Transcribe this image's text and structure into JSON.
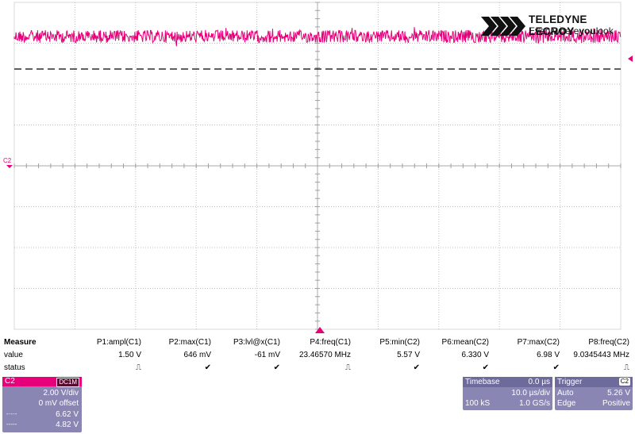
{
  "logo": {
    "brand": "TELEDYNE LECROY",
    "tagline_pre": "Everywhere",
    "tagline_bold": "you",
    "tagline_post": "look"
  },
  "colors": {
    "trace": "#e6007a",
    "grid": "#c0c0c0",
    "panel": "#8a86b4",
    "panel_header": "#6d6a9c",
    "channel_accent": "#e6007a"
  },
  "waveform": {
    "channel_label": "C2"
  },
  "measure": {
    "title": "Measure",
    "row_labels": {
      "value": "value",
      "status": "status"
    },
    "params": [
      {
        "name": "P1:ampl(C1)",
        "value": "1.50 V",
        "status": "pulse-icon"
      },
      {
        "name": "P2:max(C1)",
        "value": "646 mV",
        "status": "check-icon"
      },
      {
        "name": "P3:lvl@x(C1)",
        "value": "-61 mV",
        "status": "check-icon"
      },
      {
        "name": "P4:freq(C1)",
        "value": "23.46570 MHz",
        "status": "pulse-icon"
      },
      {
        "name": "P5:min(C2)",
        "value": "5.57 V",
        "status": "check-icon"
      },
      {
        "name": "P6:mean(C2)",
        "value": "6.330 V",
        "status": "check-icon"
      },
      {
        "name": "P7:max(C2)",
        "value": "6.98 V",
        "status": "check-icon"
      },
      {
        "name": "P8:freq(C2)",
        "value": "9.0345443 MHz",
        "status": "pulse-icon"
      }
    ]
  },
  "channel": {
    "name": "C2",
    "coupling": "DC1M",
    "vdiv": "2.00 V/div",
    "offset": "0 mV offset",
    "cursor1": "6.62 V",
    "cursor2": "4.82 V"
  },
  "timebase": {
    "title": "Timebase",
    "delay": "0.0 µs",
    "tdiv": "10.0 µs/div",
    "samples": "100 kS",
    "rate": "1.0 GS/s"
  },
  "trigger": {
    "title": "Trigger",
    "source": "C2",
    "mode": "Auto",
    "level": "5.26 V",
    "type": "Edge",
    "slope": "Positive"
  }
}
